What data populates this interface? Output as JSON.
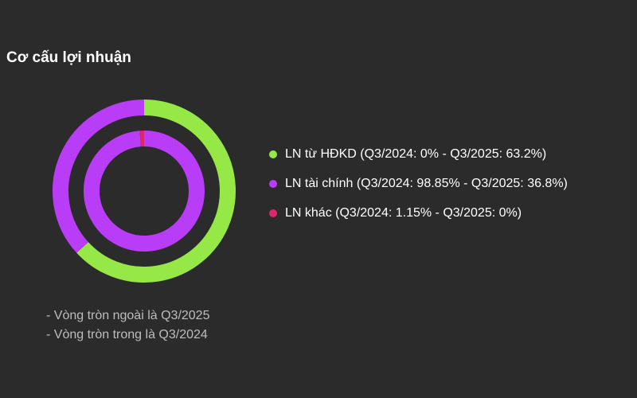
{
  "chart_data": {
    "type": "pie",
    "title": "Cơ cấu lợi nhuận",
    "categories": [
      "LN từ HĐKD",
      "LN tài chính",
      "LN khác"
    ],
    "colors": [
      "#96e847",
      "#b93cf6",
      "#e0256f"
    ],
    "series": [
      {
        "name": "Q3/2025",
        "ring": "outer",
        "values": [
          63.2,
          36.8,
          0
        ]
      },
      {
        "name": "Q3/2024",
        "ring": "inner",
        "values": [
          0,
          98.85,
          1.15
        ]
      }
    ],
    "legend": [
      "LN từ HĐKD (Q3/2024: 0% - Q3/2025: 63.2%)",
      "LN tài chính (Q3/2024: 98.85% - Q3/2025: 36.8%)",
      "LN khác (Q3/2024: 1.15% - Q3/2025: 0%)"
    ],
    "legend_position": "right",
    "notes": [
      "- Vòng tròn ngoài là Q3/2025",
      "- Vòng tròn trong là Q3/2024"
    ]
  }
}
